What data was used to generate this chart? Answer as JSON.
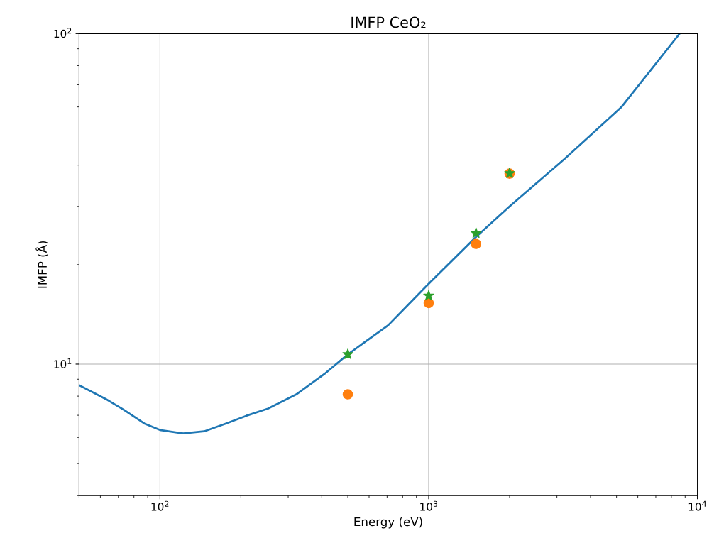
{
  "chart_data": {
    "type": "line",
    "title": "IMFP CeO₂",
    "xlabel": "Energy (eV)",
    "ylabel": "IMFP (Å)",
    "log": "xy",
    "grid": true,
    "xlim": [
      50,
      10000
    ],
    "ylim": [
      4,
      100
    ],
    "xticks": [
      {
        "value": 100,
        "label": "10$^{2}$"
      },
      {
        "value": 1000,
        "label": "10$^{3}$"
      },
      {
        "value": 10000,
        "label": "10$^{4}$"
      }
    ],
    "yticks": [
      {
        "value": 10,
        "label": "10$^{1}$"
      },
      {
        "value": 100,
        "label": "10$^{2}$"
      }
    ],
    "series": [
      {
        "color": "#1f77b4",
        "marker": "none",
        "x": [
          50,
          62.7,
          73,
          87.5,
          100,
          122,
          146,
          176,
          210,
          252,
          321,
          409,
          500,
          706,
          1000,
          1503,
          2000,
          3206,
          5200,
          8590
        ],
        "values": [
          8.63,
          7.85,
          7.29,
          6.61,
          6.32,
          6.17,
          6.26,
          6.61,
          6.98,
          7.33,
          8.09,
          9.33,
          10.7,
          13.1,
          17.5,
          24.3,
          30.0,
          41.8,
          59.8,
          100
        ]
      },
      {
        "type": "scatter",
        "color": "#ff7f0e",
        "marker": "circle",
        "x": [
          500,
          1000,
          1500,
          2000
        ],
        "values": [
          8.1,
          15.3,
          23.1,
          37.7
        ]
      },
      {
        "type": "scatter",
        "color": "#2ca02c",
        "marker": "star",
        "x": [
          500,
          1000,
          1500,
          2000
        ],
        "values": [
          10.7,
          16.1,
          24.9,
          37.8
        ]
      }
    ]
  }
}
